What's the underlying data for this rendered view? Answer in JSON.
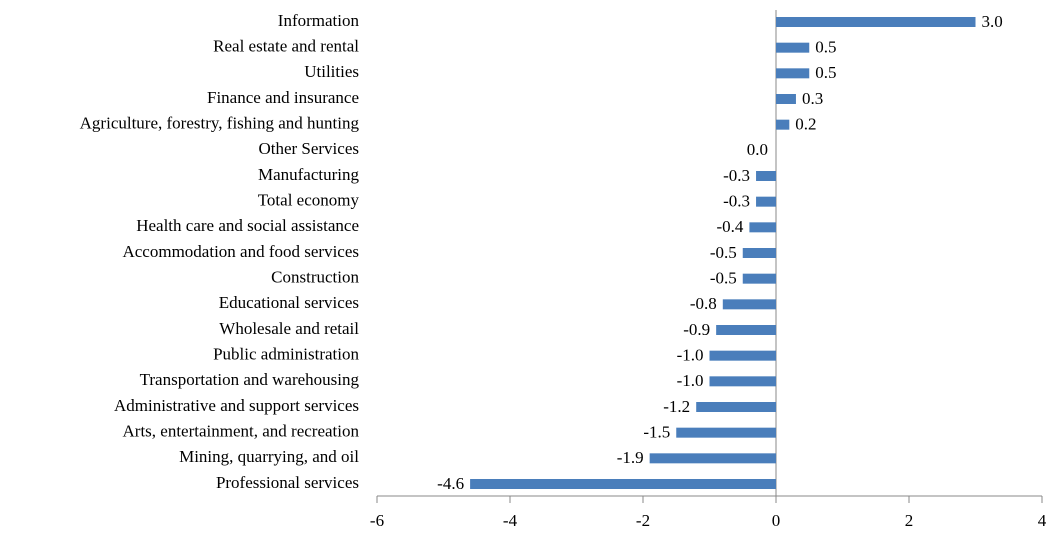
{
  "chart_data": {
    "type": "barh",
    "categories": [
      "Information",
      "Real estate and rental",
      "Utilities",
      "Finance and insurance",
      "Agriculture, forestry, fishing and hunting",
      "Other Services",
      "Manufacturing",
      "Total economy",
      "Health care and social assistance",
      "Accommodation and food services",
      "Construction",
      "Educational services",
      "Wholesale and retail",
      "Public administration",
      "Transportation and warehousing",
      "Administrative and support services",
      "Arts, entertainment, and recreation",
      "Mining, quarrying, and oil",
      "Professional services"
    ],
    "values": [
      3,
      0.5,
      0.5,
      0.3,
      0.2,
      0,
      -0.3,
      -0.3,
      -0.4,
      -0.5,
      -0.5,
      -0.8,
      -0.9,
      -1,
      -1,
      -1.2,
      -1.5,
      -1.9,
      -4.6
    ],
    "value_labels": [
      "3.0",
      "0.5",
      "0.5",
      "0.3",
      "0.2",
      "0.0",
      "-0.3",
      "-0.3",
      "-0.4",
      "-0.5",
      "-0.5",
      "-0.8",
      "-0.9",
      "-1.0",
      "-1.0",
      "-1.2",
      "-1.5",
      "-1.9",
      "-4.6"
    ],
    "color": "#4a7ebb",
    "xlim": [
      -6,
      4
    ],
    "xticks": [
      -6,
      -4,
      -2,
      0,
      2,
      4
    ],
    "grid": false
  }
}
